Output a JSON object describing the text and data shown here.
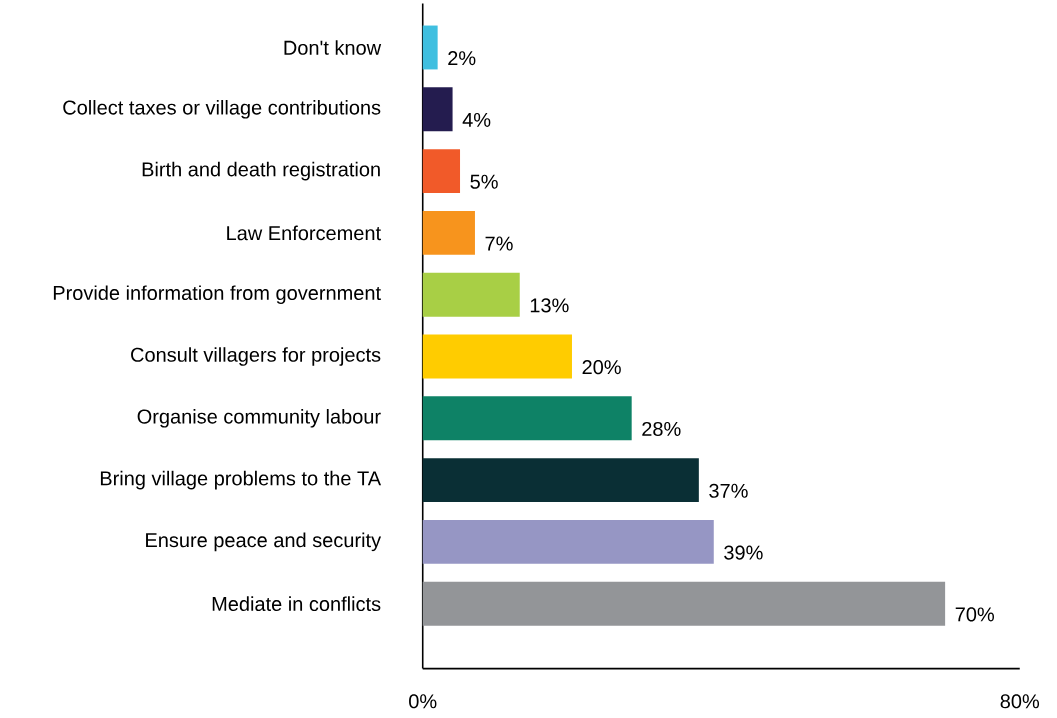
{
  "chart_data": {
    "type": "bar",
    "orientation": "horizontal",
    "categories": [
      "Don't know",
      "Collect taxes or village contributions",
      "Birth and death registration",
      "Law Enforcement",
      "Provide information from government",
      "Consult villagers for projects",
      "Organise community labour",
      "Bring village problems to the TA",
      "Ensure peace and security",
      "Mediate in conflicts"
    ],
    "values": [
      2,
      4,
      5,
      7,
      13,
      20,
      28,
      37,
      39,
      70
    ],
    "colors": [
      "#3fbfe0",
      "#241c4f",
      "#f15a29",
      "#f7941d",
      "#a8cf45",
      "#ffcc00",
      "#0e8266",
      "#0a2f35",
      "#9696c4",
      "#939598"
    ],
    "value_labels": [
      "2%",
      "4%",
      "5%",
      "7%",
      "13%",
      "20%",
      "28%",
      "37%",
      "39%",
      "70%"
    ],
    "xlim": [
      0,
      80
    ],
    "xticks": [
      {
        "value": 0,
        "label": "0%"
      },
      {
        "value": 80,
        "label": "80%"
      }
    ]
  }
}
